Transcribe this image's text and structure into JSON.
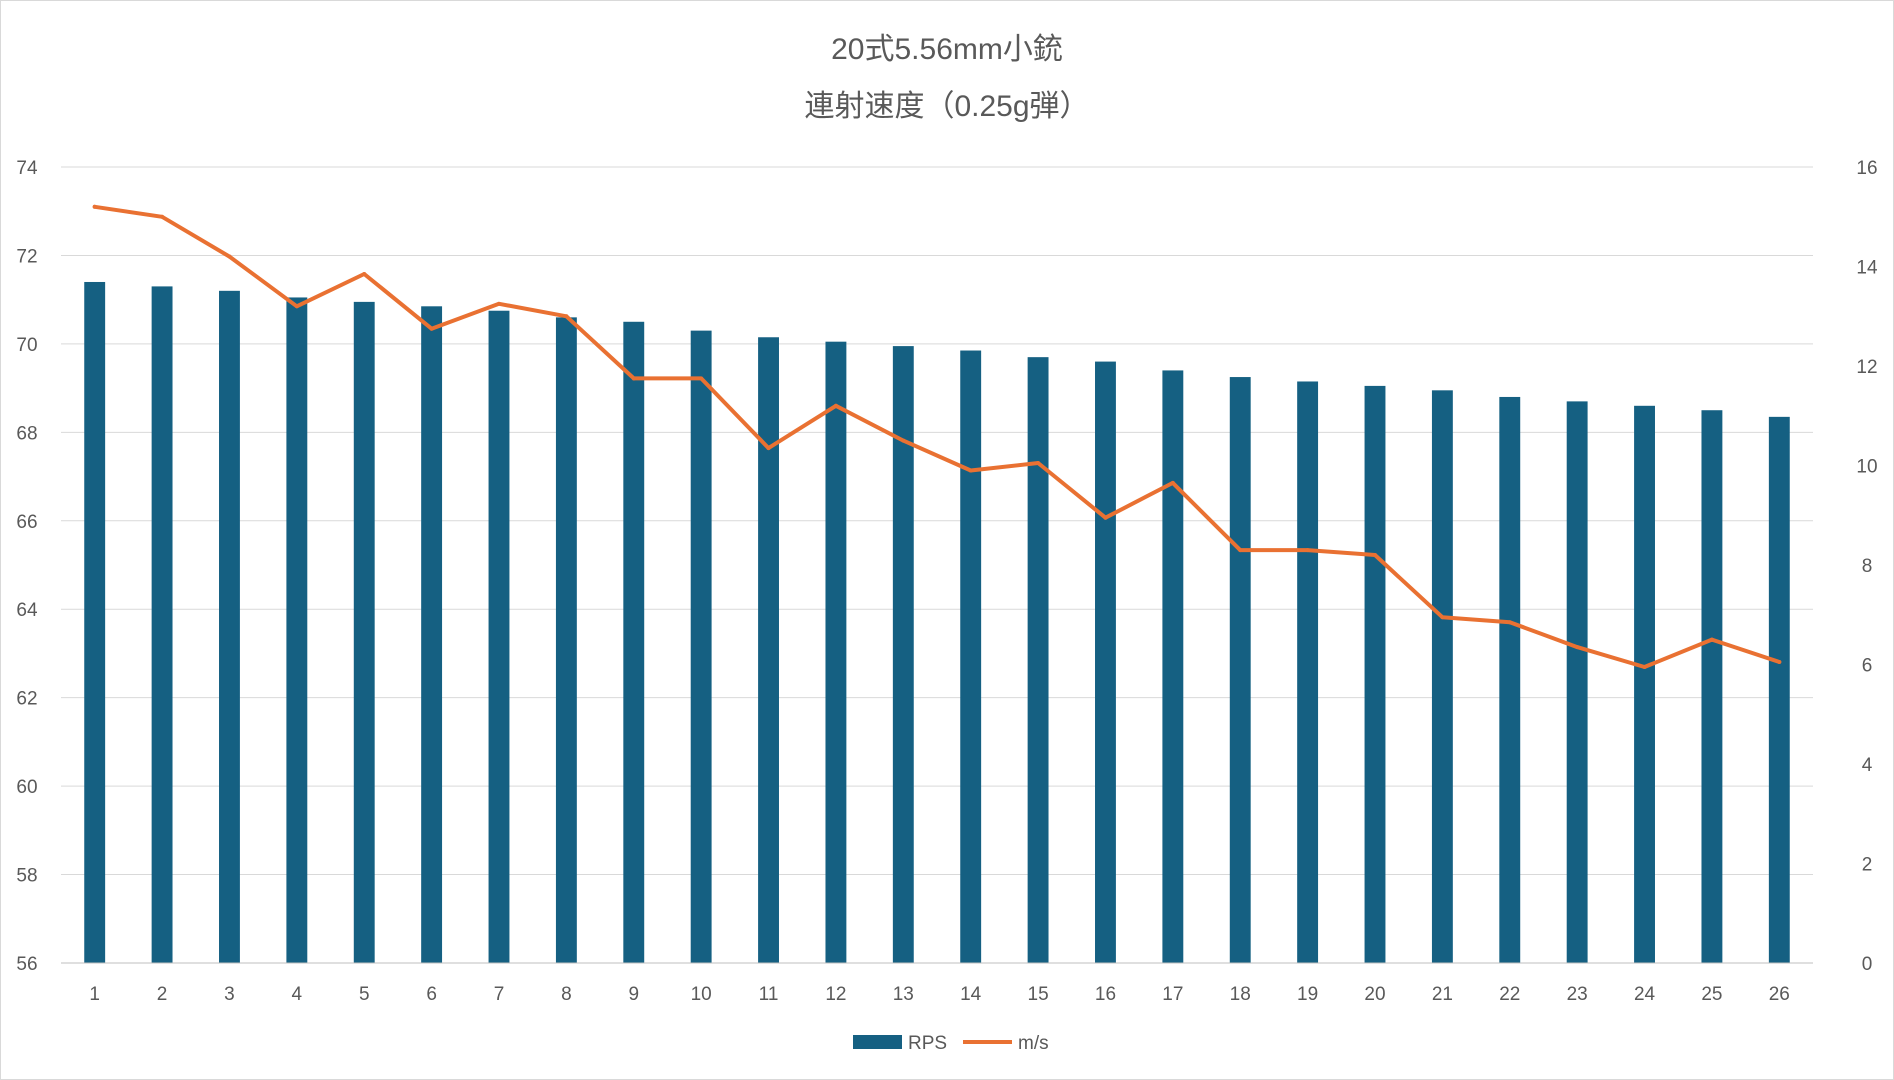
{
  "chart_data": {
    "type": "bar",
    "title": "20式5.56mm小銃",
    "subtitle": "連射速度（0.25g弾）",
    "categories": [
      "1",
      "2",
      "3",
      "4",
      "5",
      "6",
      "7",
      "8",
      "9",
      "10",
      "11",
      "12",
      "13",
      "14",
      "15",
      "16",
      "17",
      "18",
      "19",
      "20",
      "21",
      "22",
      "23",
      "24",
      "25",
      "26"
    ],
    "series": [
      {
        "name": "RPS",
        "type": "bar",
        "axis": "left",
        "color": "#156082",
        "values": [
          71.4,
          71.3,
          71.2,
          71.05,
          70.95,
          70.85,
          70.75,
          70.6,
          70.5,
          70.3,
          70.15,
          70.05,
          69.95,
          69.85,
          69.7,
          69.6,
          69.4,
          69.25,
          69.15,
          69.05,
          68.95,
          68.8,
          68.7,
          68.6,
          68.5,
          68.35
        ]
      },
      {
        "name": "m/s",
        "type": "line",
        "axis": "right",
        "color": "#E97132",
        "values": [
          15.2,
          15.0,
          14.2,
          13.2,
          13.85,
          12.75,
          13.25,
          13.0,
          11.75,
          11.75,
          10.35,
          11.2,
          10.5,
          9.9,
          10.05,
          8.95,
          9.65,
          8.3,
          8.3,
          8.2,
          6.95,
          6.85,
          6.35,
          5.95,
          6.5,
          6.05
        ]
      }
    ],
    "y_left": {
      "min": 56,
      "max": 74,
      "ticks": [
        56,
        58,
        60,
        62,
        64,
        66,
        68,
        70,
        72,
        74
      ]
    },
    "y_right": {
      "min": 0,
      "max": 16,
      "ticks": [
        0,
        2,
        4,
        6,
        8,
        10,
        12,
        14,
        16
      ]
    },
    "grid": true,
    "legend": "bottom"
  }
}
